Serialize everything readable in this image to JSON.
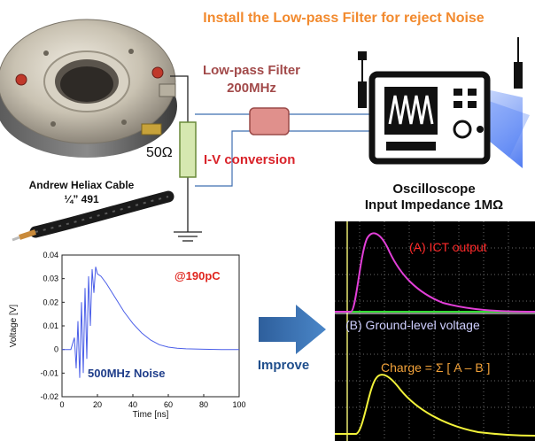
{
  "title": "Install the Low-pass Filter for reject Noise",
  "filter": {
    "label": "Low-pass Filter",
    "freq": "200MHz"
  },
  "resistor": {
    "label": "50Ω"
  },
  "iv": {
    "label": "I-V conversion"
  },
  "cable": {
    "line1": "Andrew Heliax Cable",
    "line2": "¼” 491"
  },
  "scope": {
    "line1": "Oscilloscope",
    "line2": "Input Impedance 1MΩ"
  },
  "improve": {
    "label": "Improve"
  },
  "plot": {
    "annotation": "@190pC",
    "noise": "500MHz  Noise",
    "xlabel": "Time [ns]",
    "ylabel": "Voltage [V]",
    "xticks": [
      "0",
      "20",
      "40",
      "60",
      "80",
      "100"
    ],
    "yticks": [
      "0.04",
      "0.03",
      "0.02",
      "0.01",
      "0",
      "-0.01",
      "-0.02"
    ]
  },
  "scope_screen": {
    "a_label": "(A) ICT output",
    "b_label": "(B) Ground-level voltage",
    "charge": "Charge = Σ [ A – B ]"
  },
  "chart_data": {
    "type": "line",
    "xlabel": "Time [ns]",
    "ylabel": "Voltage [V]",
    "xlim": [
      0,
      100
    ],
    "ylim": [
      -0.02,
      0.04
    ],
    "series": [
      {
        "x": [
          0,
          5,
          7,
          8,
          9,
          10,
          11,
          12,
          13,
          14,
          15,
          16,
          17,
          18,
          19,
          20,
          22,
          25,
          30,
          35,
          40,
          45,
          50,
          55,
          60,
          65,
          70,
          75,
          80,
          90,
          100
        ],
        "y": [
          0,
          0,
          0.005,
          -0.008,
          0.012,
          -0.012,
          0.02,
          -0.01,
          0.026,
          -0.004,
          0.031,
          0.01,
          0.034,
          0.024,
          0.035,
          0.032,
          0.031,
          0.028,
          0.022,
          0.016,
          0.011,
          0.007,
          0.004,
          0.002,
          0.001,
          0.0005,
          0.0003,
          0.0002,
          0.0001,
          0,
          0
        ]
      }
    ]
  },
  "colors": {
    "title": "#f28a2e",
    "filter_label": "#a24a4a",
    "iv_label": "#d9232a",
    "annotation": "#e0261f",
    "noise": "#1f3d8a",
    "improve": "#1f4e8c",
    "trace": "#4a5ee8"
  }
}
